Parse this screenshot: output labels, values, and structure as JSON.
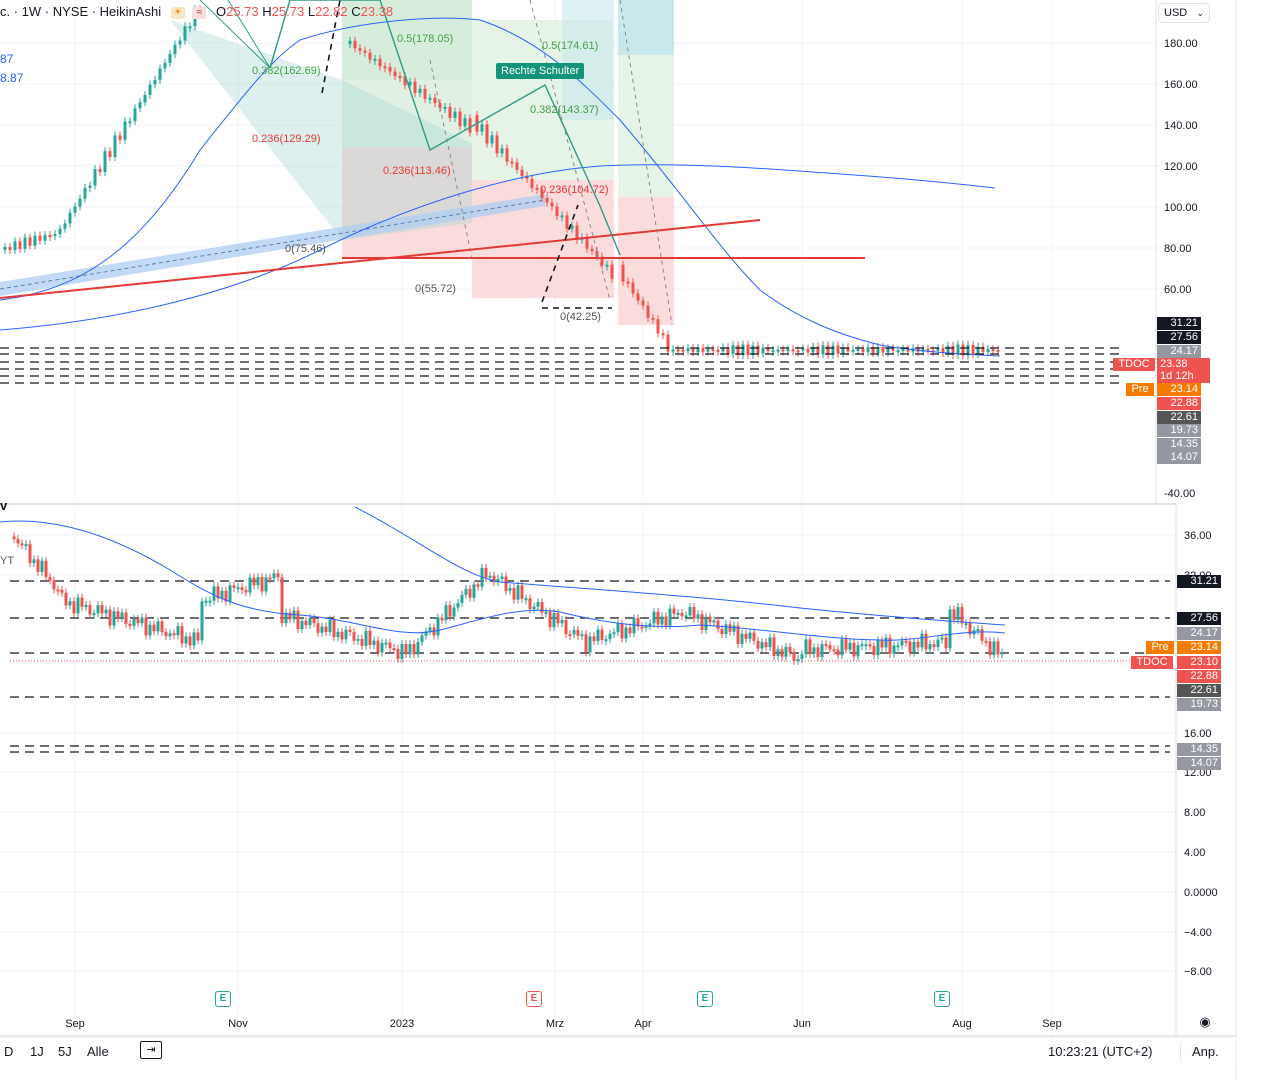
{
  "header": {
    "symbol_info": "c. · 1W · NYSE · HeikinAshi",
    "ohlc": {
      "o_label": "O",
      "o": "25.73",
      "h_label": "H",
      "h": "25.73",
      "l_label": "L",
      "l": "22.82",
      "c_label": "C",
      "c": "23.38"
    },
    "left_values": [
      "87",
      "8.87"
    ],
    "currency": "USD"
  },
  "main_chart": {
    "price_ticks": [
      "180.00",
      "160.00",
      "140.00",
      "120.00",
      "100.00",
      "80.00",
      "60.00",
      "-40.00"
    ],
    "fib_labels": [
      "0.5(178.05)",
      "0.5(174.61)",
      "0.382(162.69)",
      "0.382(143.37)",
      "0.236(129.29)",
      "0.236(113.46)",
      "0.236(104.72)",
      "0(75.46)",
      "0(55.72)",
      "0(42.25)"
    ],
    "annotation": "Rechte Schulter",
    "level_labels": [
      "31.21",
      "27.56",
      "24.17",
      "23.38",
      "1d 12h",
      "23.14",
      "22.88",
      "22.61",
      "19.73",
      "14.35",
      "14.07"
    ],
    "symbol_tag": "TDOC",
    "pre_tag": "Pre"
  },
  "lower_chart": {
    "pane_title": "v",
    "pane_subtitle": "YT",
    "price_ticks": [
      "36.00",
      "32.00",
      "16.00",
      "12.00",
      "8.00",
      "4.00",
      "0.0000",
      "−4.00",
      "−8.00"
    ],
    "level_labels": [
      "31.21",
      "27.56",
      "24.17",
      "23.14",
      "23.10",
      "22.88",
      "22.61",
      "19.73",
      "14.35",
      "14.07"
    ],
    "symbol_tag": "TDOC",
    "pre_tag": "Pre"
  },
  "time_axis": [
    "Sep",
    "Nov",
    "2023",
    "Mrz",
    "Apr",
    "Jun",
    "Aug",
    "Sep"
  ],
  "earnings_badge": "E",
  "toolbar": {
    "ranges": [
      "D",
      "1J",
      "5J",
      "Alle"
    ],
    "time": "10:23:21 (UTC+2)",
    "adjust": "Anp."
  },
  "colors": {
    "up": "#26a69a",
    "down": "#ef5350",
    "ma": "#2962ff",
    "trendline": "#e53935",
    "pre": "#f57c00"
  }
}
